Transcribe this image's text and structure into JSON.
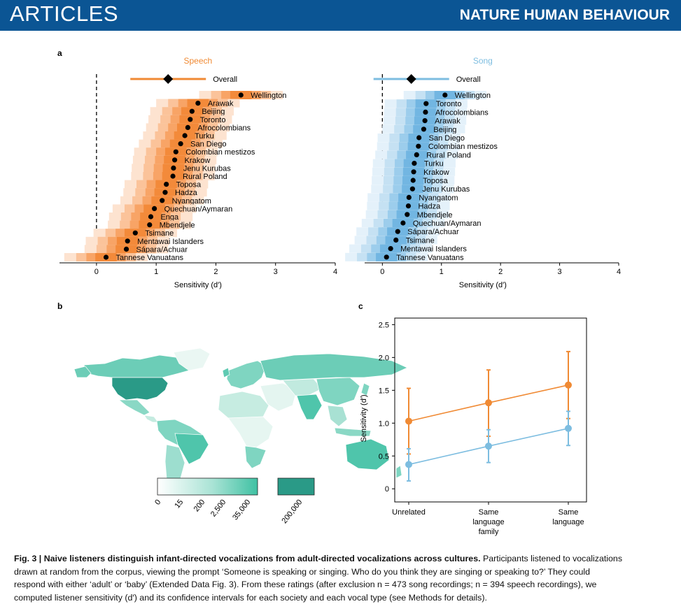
{
  "header": {
    "section": "ARTICLES",
    "journal": "NATURE HUMAN BEHAVIOUR"
  },
  "panel_labels": {
    "a": "a",
    "b": "b",
    "c": "c"
  },
  "chart_data": [
    {
      "type": "scatter",
      "panel": "a-speech",
      "title": "Speech",
      "overall_label": "Overall",
      "overall": 1.2,
      "xlabel": "Sensitivity (d′)",
      "xticks": [
        "0",
        "1",
        "2",
        "3",
        "4"
      ],
      "xlim": [
        -0.62,
        4
      ],
      "categories": [
        "Wellington",
        "Arawak",
        "Beijing",
        "Toronto",
        "Afrocolombians",
        "Turku",
        "San Diego",
        "Colombian mestizos",
        "Krakow",
        "Jenu Kurubas",
        "Rural Poland",
        "Toposa",
        "Hadza",
        "Nyangatom",
        "Quechuan/Aymaran",
        "Enga",
        "Mbendjele",
        "Tsimane",
        "Mentawai Islanders",
        "Sápara/Achuar",
        "Tannese Vanuatans"
      ],
      "values": [
        2.42,
        1.7,
        1.6,
        1.57,
        1.53,
        1.48,
        1.41,
        1.33,
        1.31,
        1.29,
        1.28,
        1.17,
        1.15,
        1.1,
        0.97,
        0.91,
        0.89,
        0.65,
        0.52,
        0.5,
        0.16
      ],
      "color": "#f08a34"
    },
    {
      "type": "scatter",
      "panel": "a-song",
      "title": "Song",
      "overall_label": "Overall",
      "overall": 0.49,
      "xlabel": "Sensitivity (d′)",
      "xticks": [
        "0",
        "1",
        "2",
        "3",
        "4"
      ],
      "xlim": [
        -0.3,
        4
      ],
      "categories": [
        "Wellington",
        "Toronto",
        "Afrocolombians",
        "Arawak",
        "Beijing",
        "San Diego",
        "Colombian mestizos",
        "Rural Poland",
        "Turku",
        "Krakow",
        "Toposa",
        "Jenu Kurubas",
        "Nyangatom",
        "Hadza",
        "Mbendjele",
        "Quechuan/Aymaran",
        "Sápara/Achuar",
        "Tsimane",
        "Mentawai Islanders",
        "Tannese Vanuatans"
      ],
      "values": [
        1.06,
        0.74,
        0.73,
        0.72,
        0.7,
        0.62,
        0.61,
        0.58,
        0.54,
        0.53,
        0.52,
        0.51,
        0.45,
        0.44,
        0.42,
        0.35,
        0.26,
        0.23,
        0.14,
        0.07
      ],
      "color": "#7dbde0"
    },
    {
      "type": "line",
      "panel": "c",
      "ylabel": "Sensitivity (d′)",
      "categories": [
        "Unrelated",
        "Same language family",
        "Same language"
      ],
      "category_lines": [
        [
          "Unrelated"
        ],
        [
          "Same",
          "language",
          "family"
        ],
        [
          "Same",
          "language"
        ]
      ],
      "ylim": [
        -0.2,
        2.6
      ],
      "yticks": [
        "0",
        "0.5",
        "1.0",
        "1.5",
        "2.0",
        "2.5"
      ],
      "series": [
        {
          "color": "#f08a34",
          "values": [
            1.03,
            1.31,
            1.58
          ],
          "lower": [
            0.53,
            0.8,
            1.07
          ],
          "upper": [
            1.53,
            1.81,
            2.09
          ]
        },
        {
          "color": "#7dbde0",
          "values": [
            0.37,
            0.65,
            0.92
          ],
          "lower": [
            0.12,
            0.4,
            0.66
          ],
          "upper": [
            0.61,
            0.9,
            1.18
          ]
        }
      ]
    }
  ],
  "map": {
    "legend_ticks": [
      "0",
      "15",
      "200",
      "2,500",
      "35,000",
      "200,000"
    ],
    "colors": {
      "low": "#ffffff",
      "mid": "#79d3bf",
      "high": "#3fc1a3",
      "max": "#2a9a87"
    }
  },
  "caption": {
    "bold": "Fig. 3 | Naive listeners distinguish infant-directed vocalizations from adult-directed vocalizations across cultures.",
    "line1_rest": " Participants listened to vocalizations",
    "line2": "drawn at random from the corpus, viewing the prompt ‘Someone is speaking or singing. Who do you think they are singing or speaking to?’ They could",
    "line3": "respond with either ‘adult’ or ‘baby’ (Extended Data Fig. 3). From these ratings (after exclusion n = 473 song recordings; n = 394 speech recordings), we",
    "line4": "computed listener sensitivity (d′) and its confidence intervals for each society and each vocal type (see Methods for details)."
  }
}
